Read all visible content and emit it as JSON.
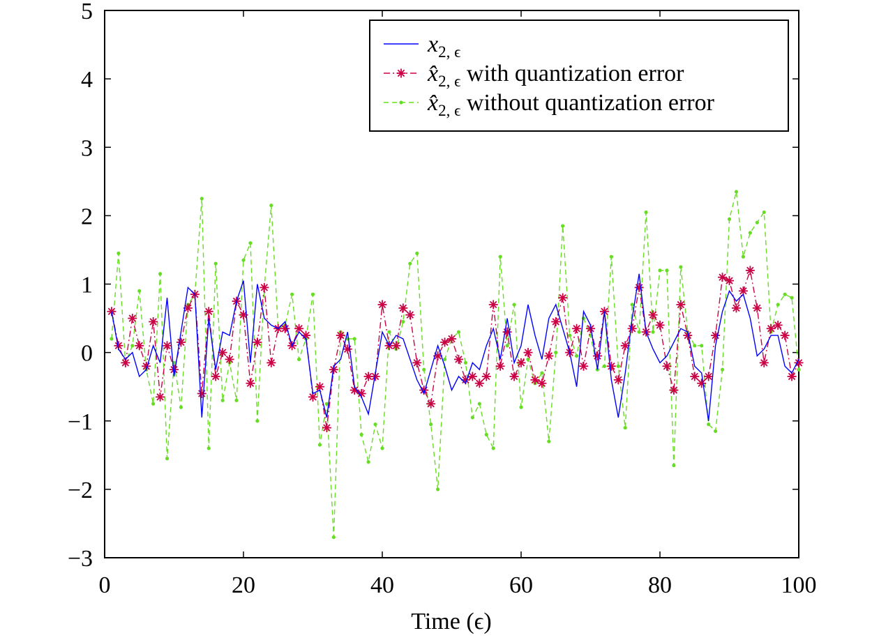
{
  "chart_data": {
    "type": "line",
    "title": "",
    "xlabel": "Time (ϵ)",
    "ylabel": "",
    "xlim": [
      0,
      100
    ],
    "ylim": [
      -3,
      5
    ],
    "xticks": [
      0,
      20,
      40,
      60,
      80,
      100
    ],
    "yticks": [
      -3,
      -2,
      -1,
      0,
      1,
      2,
      3,
      4,
      5
    ],
    "xtick_labels": [
      "0",
      "20",
      "40",
      "60",
      "80",
      "100"
    ],
    "ytick_labels": [
      "−3",
      "−2",
      "−1",
      "0",
      "1",
      "2",
      "3",
      "4",
      "5"
    ],
    "grid": false,
    "legend_position": "top-right",
    "x": [
      1,
      2,
      3,
      4,
      5,
      6,
      7,
      8,
      9,
      10,
      11,
      12,
      13,
      14,
      15,
      16,
      17,
      18,
      19,
      20,
      21,
      22,
      23,
      24,
      25,
      26,
      27,
      28,
      29,
      30,
      31,
      32,
      33,
      34,
      35,
      36,
      37,
      38,
      39,
      40,
      41,
      42,
      43,
      44,
      45,
      46,
      47,
      48,
      49,
      50,
      51,
      52,
      53,
      54,
      55,
      56,
      57,
      58,
      59,
      60,
      61,
      62,
      63,
      64,
      65,
      66,
      67,
      68,
      69,
      70,
      71,
      72,
      73,
      74,
      75,
      76,
      77,
      78,
      79,
      80,
      81,
      82,
      83,
      84,
      85,
      86,
      87,
      88,
      89,
      90,
      91,
      92,
      93,
      94,
      95,
      96,
      97,
      98,
      99,
      100
    ],
    "series": [
      {
        "name": "x",
        "subscript": "2, ϵ",
        "suffix": "",
        "color": "#0000ff",
        "style": "solid",
        "marker": "none",
        "values": [
          0.6,
          0.05,
          -0.1,
          0.0,
          -0.35,
          -0.25,
          0.1,
          -0.15,
          0.8,
          -0.35,
          0.3,
          0.95,
          0.85,
          -0.95,
          0.5,
          -0.25,
          0.3,
          0.25,
          0.75,
          1.05,
          -0.15,
          1.0,
          0.5,
          0.4,
          0.35,
          0.45,
          0.1,
          0.3,
          0.2,
          -0.6,
          -0.55,
          -0.95,
          -0.2,
          -0.1,
          0.3,
          -0.5,
          -0.65,
          -0.9,
          -0.3,
          0.3,
          0.1,
          0.25,
          0.2,
          -0.1,
          -0.4,
          -0.6,
          -0.25,
          0.1,
          -0.2,
          -0.55,
          -0.35,
          -0.45,
          -0.15,
          -0.25,
          0.1,
          0.35,
          -0.1,
          0.5,
          -0.15,
          0.1,
          0.7,
          0.25,
          -0.1,
          0.5,
          0.7,
          0.35,
          0.0,
          -0.5,
          0.6,
          0.4,
          -0.25,
          0.6,
          -0.4,
          -0.95,
          -0.3,
          0.5,
          1.15,
          0.3,
          0.05,
          -0.15,
          -0.05,
          0.15,
          0.35,
          0.3,
          -0.2,
          -0.3,
          -1.0,
          0.1,
          0.6,
          0.9,
          0.75,
          0.85,
          0.5,
          -0.05,
          0.05,
          0.25,
          0.25,
          -0.2,
          -0.3,
          -0.1
        ]
      },
      {
        "name": "x̂",
        "subscript": "2, ϵ",
        "suffix": " with quantization error",
        "color": "#cc0044",
        "style": "dash-dot",
        "marker": "asterisk",
        "values": [
          0.6,
          0.1,
          -0.15,
          0.5,
          0.1,
          -0.2,
          0.45,
          -0.65,
          0.1,
          -0.25,
          0.15,
          0.65,
          0.85,
          -0.6,
          0.6,
          -0.35,
          0.0,
          -0.1,
          0.75,
          0.55,
          -0.45,
          0.15,
          0.95,
          -0.15,
          0.35,
          0.35,
          0.1,
          0.35,
          0.25,
          -0.65,
          -0.5,
          -1.1,
          -0.25,
          0.25,
          0.05,
          -0.55,
          -0.6,
          -0.35,
          -0.35,
          0.7,
          0.1,
          0.1,
          0.65,
          0.55,
          -0.15,
          -0.55,
          -0.75,
          -0.05,
          0.15,
          0.2,
          -0.1,
          -0.4,
          -0.35,
          -0.45,
          -0.35,
          0.7,
          -0.2,
          0.3,
          -0.35,
          -0.15,
          0.0,
          -0.4,
          -0.45,
          -0.05,
          0.45,
          0.8,
          0.0,
          0.35,
          -0.2,
          0.35,
          -0.05,
          0.6,
          -0.2,
          -0.4,
          0.1,
          0.35,
          0.95,
          0.3,
          0.55,
          0.4,
          -0.2,
          -0.55,
          0.7,
          0.25,
          -0.35,
          -0.45,
          -0.35,
          0.25,
          1.1,
          1.05,
          0.65,
          0.9,
          1.2,
          0.65,
          -0.15,
          0.35,
          0.4,
          0.25,
          -0.35,
          -0.15
        ]
      },
      {
        "name": "x̂",
        "subscript": "2, ϵ",
        "suffix": " without quantization error",
        "color": "#66dd22",
        "style": "dashed",
        "marker": "dot",
        "values": [
          0.2,
          1.45,
          -0.15,
          0.1,
          0.9,
          -0.25,
          -0.75,
          1.15,
          -1.55,
          -0.15,
          -0.8,
          0.7,
          0.85,
          2.25,
          -1.4,
          1.3,
          -0.7,
          -0.15,
          -0.7,
          1.35,
          1.6,
          -1.0,
          0.95,
          2.15,
          0.35,
          0.4,
          0.85,
          -0.1,
          0.2,
          0.85,
          -1.35,
          -0.75,
          -2.7,
          0.3,
          0.2,
          0.2,
          -1.2,
          -1.6,
          -1.05,
          -1.4,
          0.3,
          0.05,
          0.45,
          1.3,
          1.45,
          -0.25,
          -1.05,
          -2.0,
          -0.1,
          0.2,
          0.3,
          -0.15,
          -0.95,
          -0.75,
          -1.2,
          -1.4,
          1.4,
          0.1,
          0.7,
          -0.8,
          -0.1,
          -0.45,
          -0.3,
          -1.3,
          0.0,
          1.85,
          0.25,
          -0.05,
          0.5,
          0.25,
          -0.25,
          -0.2,
          1.4,
          -0.2,
          -1.1,
          0.7,
          0.3,
          2.05,
          0.3,
          1.2,
          1.2,
          -1.65,
          1.25,
          0.3,
          0.1,
          0.1,
          -1.05,
          -1.15,
          -0.25,
          1.95,
          2.35,
          1.4,
          1.75,
          1.9,
          2.05,
          0.3,
          0.7,
          0.85,
          0.8,
          -0.25
        ]
      }
    ]
  }
}
